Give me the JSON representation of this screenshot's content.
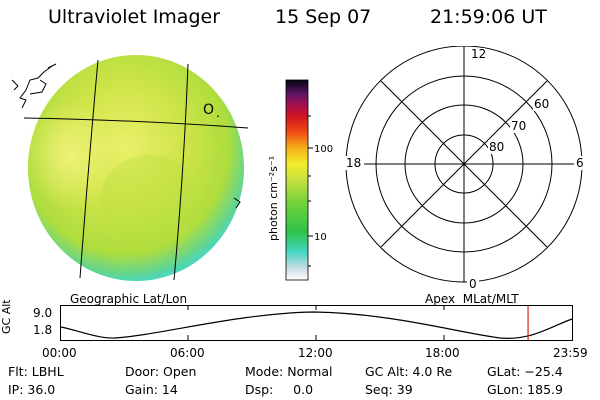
{
  "header": {
    "instrument": "Ultraviolet Imager",
    "date": "15 Sep 07",
    "time": "21:59:06 UT"
  },
  "earth_image": {
    "caption": "Geographic Lat/Lon",
    "marker_label": "O"
  },
  "colorbar": {
    "unit_label": "photon cm⁻²s⁻¹",
    "ticks": [
      "100",
      "10"
    ]
  },
  "polar_grid": {
    "caption": "Apex  MLat/MLT",
    "mlt_labels": [
      "12",
      "18",
      "6",
      "0"
    ],
    "mlat_labels": [
      "60",
      "70",
      "80"
    ]
  },
  "orbit_plot": {
    "ylabel": "GC Alt",
    "yticks": [
      "9.0",
      "1.8"
    ],
    "xticks": [
      "00:00",
      "06:00",
      "12:00",
      "18:00",
      "23:59"
    ],
    "current_time_fraction": 0.914
  },
  "status": {
    "filter": "Flt: LBHL",
    "ip": "IP: 36.0",
    "door": "Door: Open",
    "gain": "Gain: 14",
    "mode": "Mode: Normal",
    "dsp": "Dsp:     0.0",
    "gc_alt": "GC Alt: 4.0 Re",
    "seq": "Seq: 39",
    "glat": "GLat: −25.4",
    "glon": "GLon: 185.9"
  },
  "colors": {
    "marker": "#e0201c",
    "disk_main": "#c6e043",
    "disk_edge": "#4dd6b8",
    "disk_bright": "#eaf06a"
  }
}
